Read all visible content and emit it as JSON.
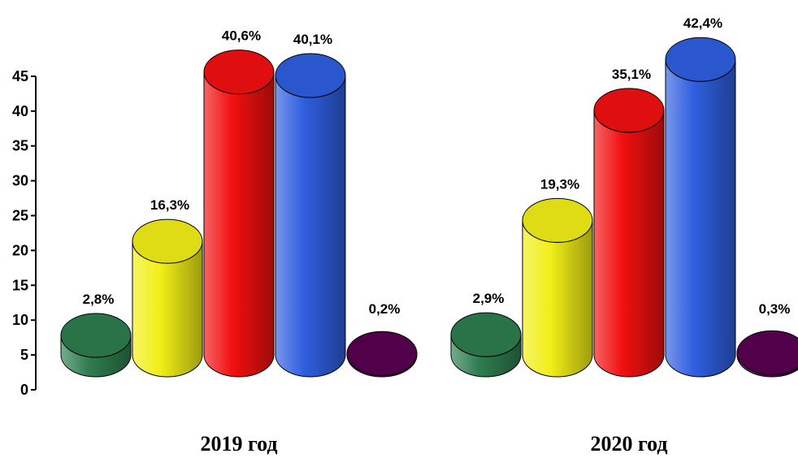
{
  "chart_data": {
    "type": "bar",
    "style": "3d-cylinder",
    "groups": [
      {
        "label": "2019 год",
        "bars": [
          {
            "value": 2.8,
            "label": "2,8%",
            "color": "#2e7d4f"
          },
          {
            "value": 16.3,
            "label": "16,3%",
            "color": "#f2ee17"
          },
          {
            "value": 40.6,
            "label": "40,6%",
            "color": "#f21010"
          },
          {
            "value": 40.1,
            "label": "40,1%",
            "color": "#2f5fe0"
          },
          {
            "value": 0.2,
            "label": "0,2%",
            "color": "#5a0050"
          }
        ]
      },
      {
        "label": "2020 год",
        "bars": [
          {
            "value": 2.9,
            "label": "2,9%",
            "color": "#2e7d4f"
          },
          {
            "value": 19.3,
            "label": "19,3%",
            "color": "#f2ee17"
          },
          {
            "value": 35.1,
            "label": "35,1%",
            "color": "#f21010"
          },
          {
            "value": 42.4,
            "label": "42,4%",
            "color": "#2f5fe0"
          },
          {
            "value": 0.3,
            "label": "0,3%",
            "color": "#5a0050"
          }
        ]
      }
    ],
    "y_ticks": [
      "0",
      "5",
      "10",
      "15",
      "20",
      "25",
      "30",
      "35",
      "40",
      "45"
    ],
    "ylim": [
      0,
      45
    ],
    "legend": "none",
    "grid": false
  }
}
